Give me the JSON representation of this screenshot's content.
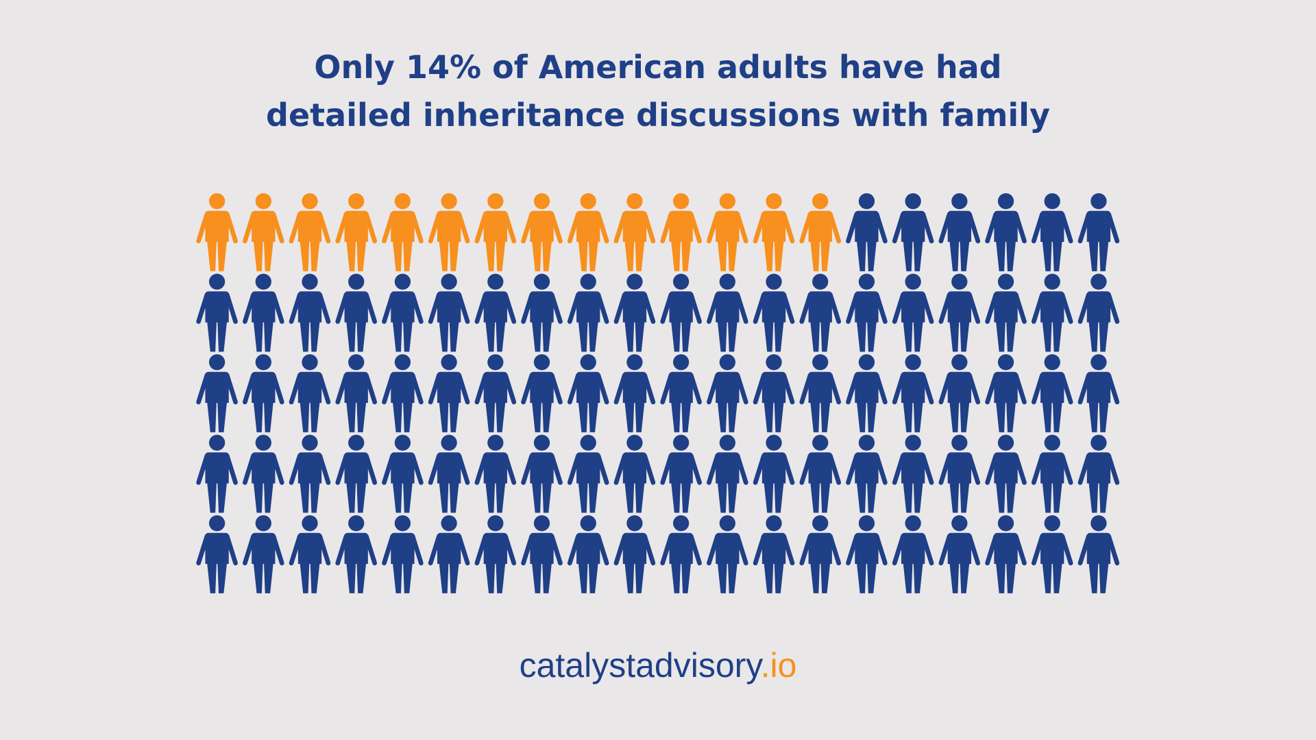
{
  "chart_data": {
    "type": "pictogram",
    "title": [
      "Only 14% of American adults have had",
      "detailed inheritance discussions with family"
    ],
    "values": [
      14,
      86
    ],
    "colors": [
      "#f7901e",
      "#1f3f87"
    ],
    "footer": {
      "name": "catalystadvisory",
      "domain": ".io",
      "name_color": "#1f3f87",
      "domain_color": "#f7901e"
    }
  }
}
